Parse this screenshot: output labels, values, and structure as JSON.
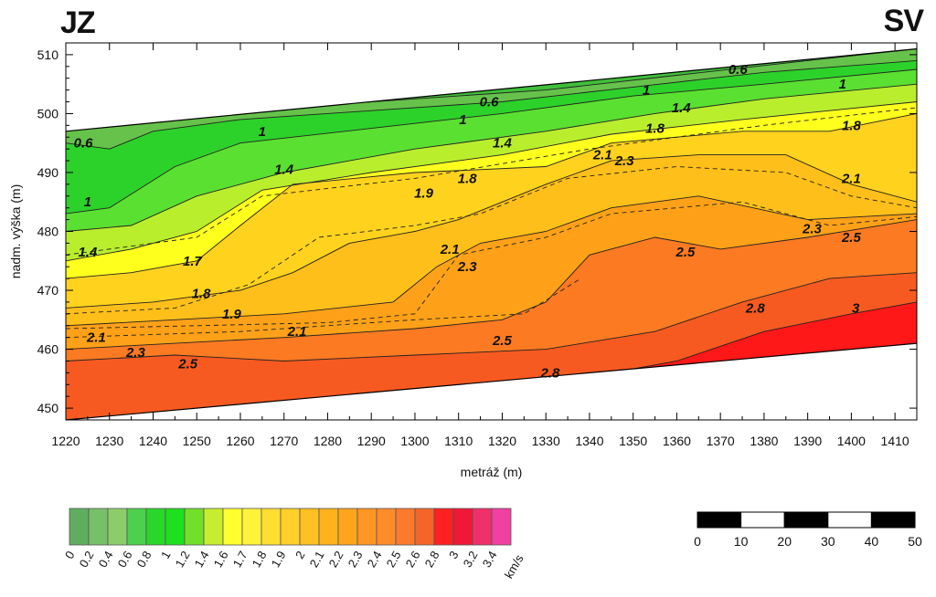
{
  "corner_labels": {
    "left": "JZ",
    "right": "SV"
  },
  "chart_data": {
    "type": "heatmap",
    "title": "",
    "xlabel": "metráž (m)",
    "ylabel": "nadm. výška (m)",
    "xlim": [
      1220,
      1415
    ],
    "ylim": [
      448,
      512
    ],
    "xticks": [
      1220,
      1230,
      1240,
      1250,
      1260,
      1270,
      1280,
      1290,
      1300,
      1310,
      1320,
      1330,
      1340,
      1350,
      1360,
      1370,
      1380,
      1390,
      1400,
      1410
    ],
    "yticks": [
      450,
      460,
      470,
      480,
      490,
      500,
      510
    ],
    "section_top": [
      [
        1220,
        497
      ],
      [
        1415,
        511
      ]
    ],
    "section_bottom": [
      [
        1220,
        448
      ],
      [
        1415,
        461
      ]
    ],
    "bands": [
      {
        "v": 0.6,
        "color": "#66c24a",
        "pts": [
          [
            1220,
            497
          ],
          [
            1230,
            499
          ],
          [
            1250,
            500
          ],
          [
            1270,
            501
          ],
          [
            1300,
            502.5
          ],
          [
            1330,
            504
          ],
          [
            1360,
            506.5
          ],
          [
            1390,
            509
          ],
          [
            1415,
            511
          ]
        ]
      },
      {
        "v": 1.0,
        "color": "#2cd22a",
        "pts": [
          [
            1220,
            495
          ],
          [
            1230,
            494
          ],
          [
            1240,
            497
          ],
          [
            1260,
            499
          ],
          [
            1290,
            500.5
          ],
          [
            1320,
            502
          ],
          [
            1350,
            504.5
          ],
          [
            1380,
            507
          ],
          [
            1415,
            509
          ]
        ]
      },
      {
        "v": 1.2,
        "color": "#5ae030",
        "pts": [
          [
            1220,
            483
          ],
          [
            1230,
            484
          ],
          [
            1245,
            491
          ],
          [
            1260,
            495
          ],
          [
            1290,
            497.5
          ],
          [
            1320,
            500
          ],
          [
            1350,
            503
          ],
          [
            1380,
            505
          ],
          [
            1415,
            507.5
          ]
        ]
      },
      {
        "v": 1.4,
        "color": "#b9ee2d",
        "pts": [
          [
            1220,
            480
          ],
          [
            1235,
            481
          ],
          [
            1250,
            486
          ],
          [
            1270,
            490
          ],
          [
            1300,
            494
          ],
          [
            1330,
            497
          ],
          [
            1355,
            500
          ],
          [
            1380,
            502.5
          ],
          [
            1415,
            505
          ]
        ]
      },
      {
        "v": 1.6,
        "color": "#ffff1e",
        "pts": [
          [
            1220,
            475
          ],
          [
            1235,
            477
          ],
          [
            1250,
            480
          ],
          [
            1265,
            487
          ],
          [
            1290,
            490
          ],
          [
            1320,
            493
          ],
          [
            1345,
            496.5
          ],
          [
            1375,
            499
          ],
          [
            1415,
            502
          ]
        ]
      },
      {
        "v": 1.8,
        "color": "#ffd21e",
        "pts": [
          [
            1220,
            472
          ],
          [
            1235,
            473
          ],
          [
            1250,
            475
          ],
          [
            1260,
            481
          ],
          [
            1272,
            488
          ],
          [
            1300,
            490
          ],
          [
            1330,
            491
          ],
          [
            1345,
            495
          ],
          [
            1375,
            497
          ],
          [
            1395,
            497
          ],
          [
            1415,
            500
          ]
        ]
      },
      {
        "v": 1.9,
        "color": "#ffbf1a",
        "pts": [
          [
            1220,
            467
          ],
          [
            1240,
            468
          ],
          [
            1260,
            470
          ],
          [
            1272,
            473
          ],
          [
            1285,
            478
          ],
          [
            1300,
            480
          ],
          [
            1310,
            482
          ],
          [
            1330,
            488
          ],
          [
            1345,
            492
          ],
          [
            1365,
            493
          ],
          [
            1385,
            493
          ],
          [
            1400,
            488
          ],
          [
            1415,
            485
          ]
        ]
      },
      {
        "v": 2.3,
        "color": "#ffa118",
        "pts": [
          [
            1220,
            464
          ],
          [
            1245,
            465
          ],
          [
            1270,
            466
          ],
          [
            1295,
            468
          ],
          [
            1305,
            474
          ],
          [
            1315,
            478
          ],
          [
            1330,
            480
          ],
          [
            1345,
            484
          ],
          [
            1365,
            486
          ],
          [
            1390,
            482
          ],
          [
            1415,
            483
          ]
        ]
      },
      {
        "v": 2.5,
        "color": "#fc7a22",
        "pts": [
          [
            1220,
            460
          ],
          [
            1245,
            461
          ],
          [
            1270,
            462
          ],
          [
            1300,
            463.5
          ],
          [
            1320,
            465
          ],
          [
            1330,
            468
          ],
          [
            1340,
            476
          ],
          [
            1355,
            479
          ],
          [
            1370,
            477
          ],
          [
            1390,
            479
          ],
          [
            1415,
            482
          ]
        ]
      },
      {
        "v": 2.6,
        "color": "#f75a20",
        "pts": [
          [
            1220,
            458
          ],
          [
            1245,
            459
          ],
          [
            1270,
            458
          ],
          [
            1300,
            459
          ],
          [
            1330,
            460
          ],
          [
            1355,
            463
          ],
          [
            1375,
            468
          ],
          [
            1395,
            472
          ],
          [
            1415,
            473
          ]
        ]
      },
      {
        "v": 2.8,
        "color": "#ff1818",
        "pts": [
          [
            1300,
            450
          ],
          [
            1330,
            454
          ],
          [
            1360,
            458
          ],
          [
            1380,
            463
          ],
          [
            1400,
            466
          ],
          [
            1415,
            468
          ]
        ]
      }
    ],
    "dashed_contours": [
      [
        [
          1220,
          476
        ],
        [
          1250,
          479
        ],
        [
          1265,
          486
        ],
        [
          1300,
          489
        ],
        [
          1340,
          494
        ],
        [
          1380,
          498
        ],
        [
          1415,
          501
        ]
      ],
      [
        [
          1220,
          466
        ],
        [
          1245,
          467
        ],
        [
          1262,
          471
        ],
        [
          1278,
          479
        ],
        [
          1300,
          481
        ],
        [
          1315,
          483
        ],
        [
          1335,
          489
        ],
        [
          1360,
          491
        ],
        [
          1385,
          490
        ],
        [
          1400,
          486
        ],
        [
          1415,
          484
        ]
      ],
      [
        [
          1220,
          463.5
        ],
        [
          1250,
          464
        ],
        [
          1280,
          464.5
        ],
        [
          1300,
          466
        ],
        [
          1310,
          476
        ],
        [
          1330,
          479
        ],
        [
          1345,
          483
        ],
        [
          1375,
          485
        ],
        [
          1395,
          481
        ],
        [
          1415,
          482.5
        ]
      ],
      [
        [
          1220,
          462
        ],
        [
          1260,
          463
        ],
        [
          1300,
          465
        ],
        [
          1325,
          466
        ],
        [
          1338,
          472
        ]
      ]
    ],
    "contour_labels": [
      {
        "text": "0.6",
        "x": 1224,
        "y": 495
      },
      {
        "text": "0.6",
        "x": 1317,
        "y": 502
      },
      {
        "text": "0.6",
        "x": 1374,
        "y": 507.5
      },
      {
        "text": "1",
        "x": 1225,
        "y": 485
      },
      {
        "text": "1",
        "x": 1265,
        "y": 497
      },
      {
        "text": "1",
        "x": 1311,
        "y": 499
      },
      {
        "text": "1",
        "x": 1353,
        "y": 504
      },
      {
        "text": "1",
        "x": 1398,
        "y": 505
      },
      {
        "text": "1.4",
        "x": 1225,
        "y": 476.5
      },
      {
        "text": "1.4",
        "x": 1270,
        "y": 490.5
      },
      {
        "text": "1.4",
        "x": 1320,
        "y": 495
      },
      {
        "text": "1.4",
        "x": 1361,
        "y": 501
      },
      {
        "text": "1.7",
        "x": 1249,
        "y": 475
      },
      {
        "text": "1.8",
        "x": 1251,
        "y": 469.5
      },
      {
        "text": "1.8",
        "x": 1312,
        "y": 489
      },
      {
        "text": "1.8",
        "x": 1355,
        "y": 497.5
      },
      {
        "text": "1.8",
        "x": 1400,
        "y": 498
      },
      {
        "text": "1.9",
        "x": 1258,
        "y": 466
      },
      {
        "text": "1.9",
        "x": 1302,
        "y": 486.5
      },
      {
        "text": "2.1",
        "x": 1227,
        "y": 462
      },
      {
        "text": "2.1",
        "x": 1273,
        "y": 463
      },
      {
        "text": "2.1",
        "x": 1308,
        "y": 477
      },
      {
        "text": "2.1",
        "x": 1343,
        "y": 493
      },
      {
        "text": "2.1",
        "x": 1400,
        "y": 489
      },
      {
        "text": "2.3",
        "x": 1236,
        "y": 459.5
      },
      {
        "text": "2.3",
        "x": 1312,
        "y": 474
      },
      {
        "text": "2.3",
        "x": 1348,
        "y": 492
      },
      {
        "text": "2.3",
        "x": 1391,
        "y": 480.5
      },
      {
        "text": "2.5",
        "x": 1248,
        "y": 457.5
      },
      {
        "text": "2.5",
        "x": 1320,
        "y": 461.5
      },
      {
        "text": "2.5",
        "x": 1362,
        "y": 476.5
      },
      {
        "text": "2.5",
        "x": 1400,
        "y": 479
      },
      {
        "text": "2.8",
        "x": 1331,
        "y": 456
      },
      {
        "text": "2.8",
        "x": 1378,
        "y": 467
      },
      {
        "text": "3",
        "x": 1401,
        "y": 467
      }
    ],
    "colorscale": {
      "unit": "km/s",
      "ticks": [
        "0",
        "0.2",
        "0.4",
        "0.6",
        "0.8",
        "1",
        "1.2",
        "1.4",
        "1.6",
        "1.7",
        "1.8",
        "1.9",
        "2",
        "2.1",
        "2.2",
        "2.3",
        "2.4",
        "2.5",
        "2.6",
        "2.8",
        "3",
        "3.2",
        "3.4"
      ],
      "colors": [
        "#5fae5f",
        "#76c06a",
        "#8ccd6a",
        "#4dd04d",
        "#2ad62a",
        "#1ee01e",
        "#72e028",
        "#c6ee2e",
        "#ffff30",
        "#fff23a",
        "#ffde32",
        "#ffd02a",
        "#ffc022",
        "#ffb21c",
        "#ffa51c",
        "#ff9722",
        "#ff8c2a",
        "#fb7a2e",
        "#f56428",
        "#ff2020",
        "#f01838",
        "#f0306a",
        "#f040a0"
      ]
    },
    "scalebar": {
      "ticks": [
        "0",
        "10",
        "20",
        "30",
        "40",
        "50"
      ]
    }
  }
}
